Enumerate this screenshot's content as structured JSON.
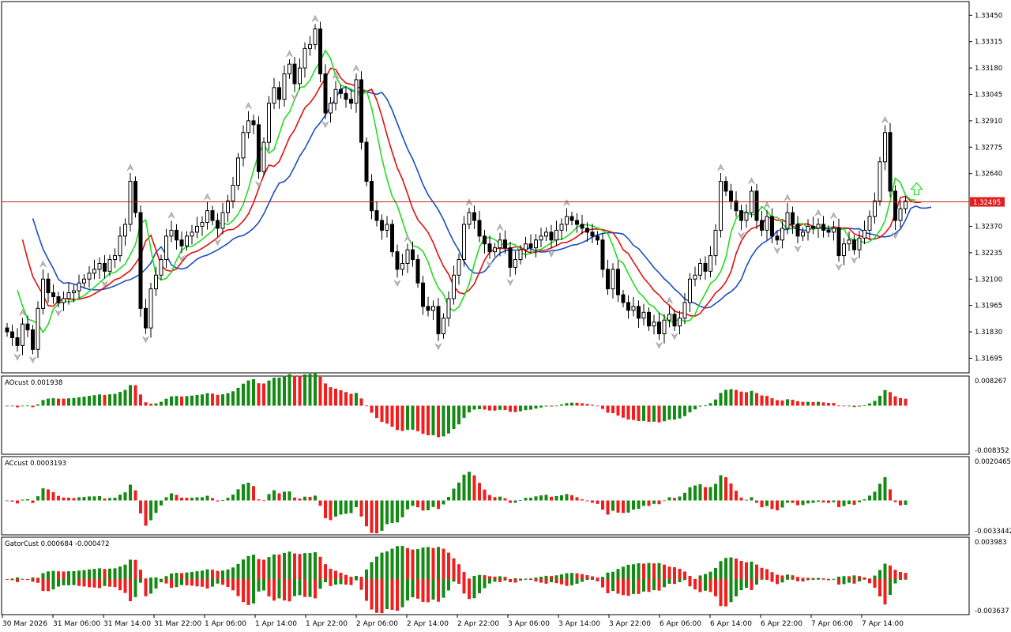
{
  "chart_data": {
    "type": "candlestick",
    "main": {
      "price_axis": [
        "1.33450",
        "1.33315",
        "1.33180",
        "1.33045",
        "1.32910",
        "1.32775",
        "1.32640",
        "1.32370",
        "1.32235",
        "1.32100",
        "1.31965",
        "1.31830",
        "1.31695"
      ],
      "current_price": "1.32495",
      "ylim": [
        1.3162,
        1.3352
      ],
      "closes": [
        1.3183,
        1.318,
        1.3176,
        1.3187,
        1.3184,
        1.3174,
        1.3195,
        1.321,
        1.3203,
        1.3201,
        1.3198,
        1.32,
        1.3203,
        1.3204,
        1.3208,
        1.321,
        1.3213,
        1.3215,
        1.3218,
        1.3214,
        1.322,
        1.3222,
        1.3232,
        1.3238,
        1.326,
        1.3244,
        1.3195,
        1.3185,
        1.3205,
        1.3212,
        1.322,
        1.3232,
        1.3235,
        1.323,
        1.3227,
        1.3232,
        1.3234,
        1.3237,
        1.3239,
        1.3245,
        1.324,
        1.3236,
        1.3244,
        1.325,
        1.3258,
        1.3272,
        1.3285,
        1.3291,
        1.3289,
        1.3265,
        1.328,
        1.33,
        1.3308,
        1.3302,
        1.3315,
        1.332,
        1.331,
        1.3318,
        1.3328,
        1.333,
        1.3338,
        1.3315,
        1.3295,
        1.33,
        1.3307,
        1.3305,
        1.3302,
        1.33,
        1.3312,
        1.328,
        1.326,
        1.3245,
        1.324,
        1.3235,
        1.3238,
        1.3224,
        1.3215,
        1.3218,
        1.3225,
        1.322,
        1.3208,
        1.3196,
        1.3194,
        1.3196,
        1.3182,
        1.319,
        1.32,
        1.3212,
        1.322,
        1.3238,
        1.3244,
        1.324,
        1.3232,
        1.3228,
        1.3224,
        1.3226,
        1.323,
        1.3226,
        1.3216,
        1.322,
        1.3225,
        1.3228,
        1.3226,
        1.323,
        1.3232,
        1.3234,
        1.323,
        1.3235,
        1.3238,
        1.3242,
        1.324,
        1.3238,
        1.3236,
        1.3234,
        1.3232,
        1.323,
        1.3215,
        1.3205,
        1.3215,
        1.3202,
        1.3198,
        1.3194,
        1.3196,
        1.319,
        1.3193,
        1.3186,
        1.3188,
        1.3182,
        1.3189,
        1.3192,
        1.3186,
        1.319,
        1.3198,
        1.321,
        1.3212,
        1.3218,
        1.3214,
        1.3222,
        1.3235,
        1.326,
        1.3255,
        1.325,
        1.3245,
        1.324,
        1.3244,
        1.3255,
        1.324,
        1.3235,
        1.3242,
        1.3232,
        1.323,
        1.3236,
        1.3244,
        1.3238,
        1.3232,
        1.3234,
        1.3237,
        1.3236,
        1.3238,
        1.3235,
        1.3234,
        1.3236,
        1.3222,
        1.3228,
        1.323,
        1.3225,
        1.3231,
        1.3235,
        1.3242,
        1.325,
        1.327,
        1.3285,
        1.3255,
        1.324,
        1.3246,
        1.325
      ],
      "lines": [
        {
          "name": "blue",
          "color": "#1a4fbf",
          "start": 1.325,
          "smooth": 14
        },
        {
          "name": "red",
          "color": "#e01010",
          "start": 1.3242,
          "smooth": 9
        },
        {
          "name": "green",
          "color": "#22dd22",
          "start": 1.3215,
          "smooth": 5
        }
      ]
    },
    "panels": [
      {
        "label": "AOcust 0.001938",
        "max": "0.008267",
        "min": "-0.008352",
        "type": "histogram"
      },
      {
        "label": "ACcust 0.0003193",
        "max": "0.0020465",
        "min": "-0.0033442",
        "type": "histogram"
      },
      {
        "label": "GatorCust 0.000684 -0.000472",
        "max": "0.003983",
        "min": "-0.003637",
        "type": "gator"
      }
    ],
    "x_labels": [
      "30 Mar 2026",
      "31 Mar 06:00",
      "31 Mar 14:00",
      "31 Mar 22:00",
      "1 Apr 06:00",
      "1 Apr 14:00",
      "1 Apr 22:00",
      "2 Apr 06:00",
      "2 Apr 14:00",
      "2 Apr 22:00",
      "3 Apr 06:00",
      "3 Apr 14:00",
      "3 Apr 22:00",
      "6 Apr 06:00",
      "6 Apr 14:00",
      "6 Apr 22:00",
      "7 Apr 06:00",
      "7 Apr 14:00"
    ],
    "colors": {
      "up": "#138a13",
      "down": "#f21d1d",
      "grid": "#000000",
      "price_line": "#c81e1e",
      "price_badge": "#e02020"
    }
  }
}
